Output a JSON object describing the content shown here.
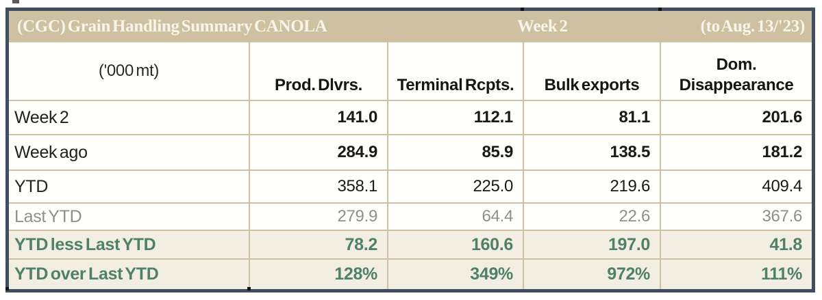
{
  "chart_data": {
    "type": "table",
    "title": "(CGC) Grain Handling Summary CANOLA",
    "period": "Week 2",
    "as_of": "(to Aug. 13/'23)",
    "unit": "('000 mt)",
    "columns": [
      "Prod. Dlvrs.",
      "Terminal Rcpts.",
      "Bulk exports",
      "Dom.\nDisappearance"
    ],
    "rows": [
      {
        "label": "Week 2",
        "values": [
          "141.0",
          "112.1",
          "81.1",
          "201.6"
        ]
      },
      {
        "label": "Week ago",
        "values": [
          "284.9",
          "85.9",
          "138.5",
          "181.2"
        ]
      },
      {
        "label": "YTD",
        "values": [
          "358.1",
          "225.0",
          "219.6",
          "409.4"
        ]
      },
      {
        "label": "Last YTD",
        "values": [
          "279.9",
          "64.4",
          "22.6",
          "367.6"
        ]
      },
      {
        "label": "YTD less Last YTD",
        "values": [
          "78.2",
          "160.6",
          "197.0",
          "41.8"
        ]
      },
      {
        "label": "YTD over Last YTD",
        "values": [
          "128%",
          "349%",
          "972%",
          "111%"
        ]
      }
    ]
  },
  "colors": {
    "frame_navy": "#414d60",
    "header_tan": "#cdc1a2",
    "title_text": "#f8f4ea",
    "accent_green": "#4f8069",
    "accent_row_bg": "#f2eee1",
    "muted_gray": "#8f8f8a"
  }
}
